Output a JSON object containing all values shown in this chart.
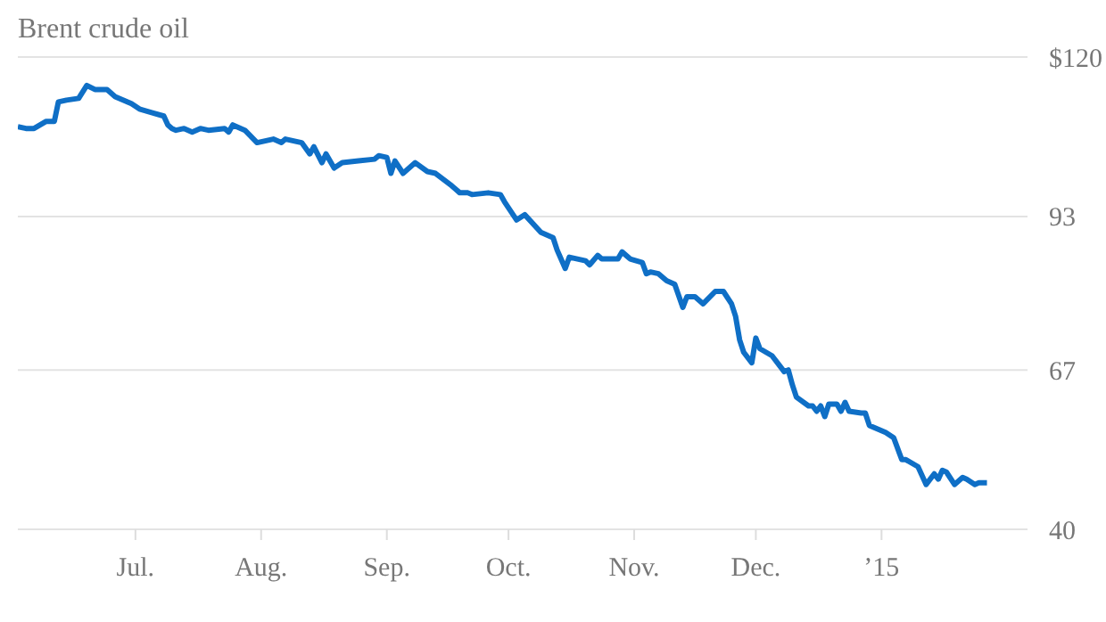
{
  "chart_data": {
    "type": "line",
    "title": "Brent crude oil",
    "x": [
      "2014-06-02",
      "2014-06-04",
      "2014-06-06",
      "2014-06-09",
      "2014-06-11",
      "2014-06-12",
      "2014-06-14",
      "2014-06-17",
      "2014-06-19",
      "2014-06-21",
      "2014-06-24",
      "2014-06-26",
      "2014-06-30",
      "2014-07-02",
      "2014-07-05",
      "2014-07-08",
      "2014-07-09",
      "2014-07-10",
      "2014-07-11",
      "2014-07-13",
      "2014-07-15",
      "2014-07-17",
      "2014-07-19",
      "2014-07-23",
      "2014-07-24",
      "2014-07-25",
      "2014-07-28",
      "2014-07-31",
      "2014-08-04",
      "2014-08-06",
      "2014-08-07",
      "2014-08-11",
      "2014-08-13",
      "2014-08-14",
      "2014-08-16",
      "2014-08-17",
      "2014-08-19",
      "2014-08-21",
      "2014-08-25",
      "2014-08-29",
      "2014-08-30",
      "2014-09-01",
      "2014-09-02",
      "2014-09-03",
      "2014-09-05",
      "2014-09-08",
      "2014-09-11",
      "2014-09-13",
      "2014-09-17",
      "2014-09-19",
      "2014-09-21",
      "2014-09-22",
      "2014-09-26",
      "2014-09-29",
      "2014-09-30",
      "2014-10-03",
      "2014-10-05",
      "2014-10-09",
      "2014-10-12",
      "2014-10-13",
      "2014-10-15",
      "2014-10-16",
      "2014-10-20",
      "2014-10-21",
      "2014-10-23",
      "2014-10-24",
      "2014-10-28",
      "2014-10-29",
      "2014-10-31",
      "2014-11-03",
      "2014-11-04",
      "2014-11-05",
      "2014-11-07",
      "2014-11-09",
      "2014-11-11",
      "2014-11-13",
      "2014-11-14",
      "2014-11-16",
      "2014-11-18",
      "2014-11-21",
      "2014-11-23",
      "2014-11-25",
      "2014-11-26",
      "2014-11-27",
      "2014-11-28",
      "2014-11-30",
      "2014-12-01",
      "2014-12-02",
      "2014-12-05",
      "2014-12-07",
      "2014-12-08",
      "2014-12-09",
      "2014-12-10",
      "2014-12-11",
      "2014-12-14",
      "2014-12-15",
      "2014-12-16",
      "2014-12-17",
      "2014-12-18",
      "2014-12-19",
      "2014-12-21",
      "2014-12-22",
      "2014-12-23",
      "2014-12-24",
      "2014-12-27",
      "2014-12-28",
      "2014-12-29",
      "2015-01-02",
      "2015-01-04",
      "2015-01-06",
      "2015-01-07",
      "2015-01-10",
      "2015-01-12",
      "2015-01-14",
      "2015-01-15",
      "2015-01-16",
      "2015-01-17",
      "2015-01-19",
      "2015-01-21",
      "2015-01-22",
      "2015-01-24",
      "2015-01-25",
      "2015-01-27"
    ],
    "series": [
      {
        "color": "#0f6fc6",
        "values": [
          108.2,
          107.9,
          107.9,
          109.1,
          109.1,
          112.4,
          112.7,
          113.0,
          115.2,
          114.5,
          114.5,
          113.3,
          112.1,
          111.2,
          110.6,
          110.0,
          108.5,
          107.9,
          107.6,
          107.9,
          107.3,
          107.9,
          107.6,
          107.9,
          107.3,
          108.5,
          107.6,
          105.5,
          106.1,
          105.5,
          106.1,
          105.5,
          103.6,
          104.8,
          102.1,
          103.6,
          101.2,
          102.1,
          102.4,
          102.7,
          103.3,
          103.0,
          100.3,
          102.4,
          100.3,
          102.1,
          100.6,
          100.3,
          98.2,
          97.0,
          97.0,
          96.7,
          97.0,
          96.7,
          95.5,
          92.4,
          93.3,
          90.3,
          89.4,
          87.3,
          84.2,
          86.1,
          85.5,
          84.8,
          86.4,
          85.8,
          85.8,
          87.0,
          85.8,
          85.2,
          83.3,
          83.6,
          83.3,
          82.1,
          81.5,
          77.6,
          79.4,
          79.4,
          78.2,
          80.3,
          80.3,
          78.2,
          76.1,
          72.1,
          70.0,
          68.2,
          72.4,
          70.6,
          69.4,
          67.6,
          66.7,
          67.0,
          64.5,
          62.4,
          60.9,
          60.9,
          60.0,
          60.9,
          59.1,
          61.2,
          61.2,
          60.0,
          61.5,
          60.0,
          59.7,
          59.7,
          57.6,
          56.4,
          55.5,
          51.8,
          51.8,
          50.6,
          47.6,
          49.4,
          48.5,
          50.0,
          49.7,
          47.6,
          48.8,
          48.5,
          47.6,
          47.9,
          47.9
        ]
      }
    ],
    "xlim": [
      "2014-06-02",
      "2015-02-06"
    ],
    "xticks": [
      {
        "value": "2014-07-01",
        "label": "Jul."
      },
      {
        "value": "2014-08-01",
        "label": "Aug."
      },
      {
        "value": "2014-09-01",
        "label": "Sep."
      },
      {
        "value": "2014-10-01",
        "label": "Oct."
      },
      {
        "value": "2014-11-01",
        "label": "Nov."
      },
      {
        "value": "2014-12-01",
        "label": "Dec."
      },
      {
        "value": "2015-01-01",
        "label": "’15"
      }
    ],
    "ylim": [
      40,
      120
    ],
    "yticks": [
      {
        "value": 120,
        "label": "$120"
      },
      93,
      67,
      40
    ],
    "grid": "y",
    "legend": false,
    "marker": "none",
    "line_style": "solid"
  }
}
